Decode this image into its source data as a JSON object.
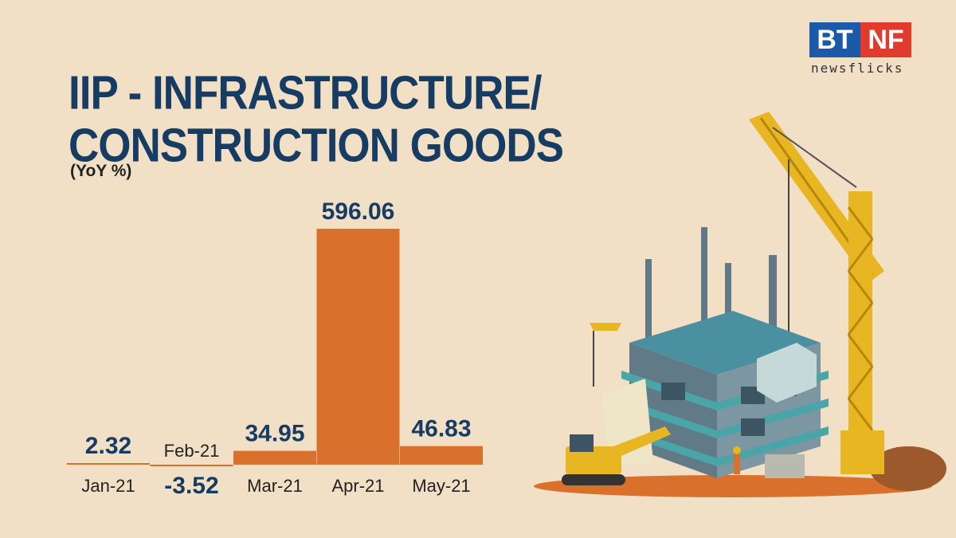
{
  "title_line1": "IIP - INFRASTRUCTURE/",
  "title_line2": "CONSTRUCTION GOODS",
  "subtitle": "(YoY %)",
  "logo": {
    "left": "BT",
    "right": "NF",
    "tagline": "newsflicks"
  },
  "colors": {
    "bar": "#d9702c",
    "value_text": "#173c63",
    "title": "#173c63",
    "background": "#f1dfc6"
  },
  "chart_data": {
    "type": "bar",
    "categories": [
      "Jan-21",
      "Feb-21",
      "Mar-21",
      "Apr-21",
      "May-21"
    ],
    "values": [
      2.32,
      -3.52,
      34.95,
      596.06,
      46.83
    ],
    "value_labels": [
      "2.32",
      "-3.52",
      "34.95",
      "596.06",
      "46.83"
    ],
    "title": "IIP - INFRASTRUCTURE/ CONSTRUCTION GOODS",
    "subtitle": "(YoY %)",
    "xlabel": "",
    "ylabel": "",
    "ylim": [
      -3.52,
      596.06
    ],
    "grid": false,
    "legend": "none"
  }
}
